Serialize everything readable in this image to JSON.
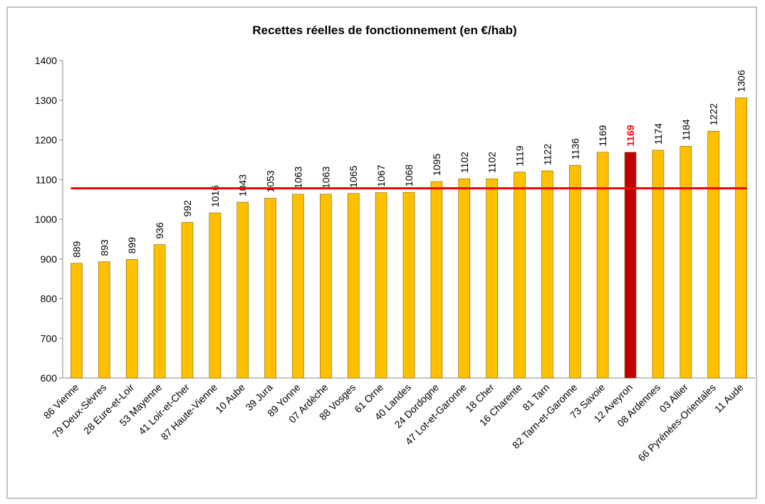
{
  "chart_data": {
    "type": "bar",
    "title": "Recettes réelles de fonctionnement (en €/hab)",
    "categories": [
      "86 Vienne",
      "79 Deux-Sèvres",
      "28 Eure-et-Loir",
      "53 Mayenne",
      "41 Loir-et-Cher",
      "87 Haute-Vienne",
      "10 Aube",
      "39 Jura",
      "89 Yonne",
      "07 Ardèche",
      "88 Vosges",
      "61 Orne",
      "40 Landes",
      "24 Dordogne",
      "47 Lot-et-Garonne",
      "18 Cher",
      "16 Charente",
      "81 Tarn",
      "82 Tarn-et-Garonne",
      "73 Savoie",
      "12 Aveyron",
      "08 Ardennes",
      "03 Allier",
      "66 Pyrénées-Orientales",
      "11 Aude"
    ],
    "values": [
      889,
      893,
      899,
      936,
      992,
      1016,
      1043,
      1053,
      1063,
      1063,
      1065,
      1067,
      1068,
      1095,
      1102,
      1102,
      1119,
      1122,
      1136,
      1169,
      1169,
      1174,
      1184,
      1222,
      1306
    ],
    "colors": [
      "#ffc000",
      "#ffc000",
      "#ffc000",
      "#ffc000",
      "#ffc000",
      "#ffc000",
      "#ffc000",
      "#ffc000",
      "#ffc000",
      "#ffc000",
      "#ffc000",
      "#ffc000",
      "#ffc000",
      "#ffc000",
      "#ffc000",
      "#ffc000",
      "#ffc000",
      "#ffc000",
      "#ffc000",
      "#ffc000",
      "#c00000",
      "#ffc000",
      "#ffc000",
      "#ffc000",
      "#ffc000"
    ],
    "reference_line": 1078,
    "reference_color": "#ff0000",
    "ylim": [
      600,
      1400
    ],
    "yticks": [
      600,
      700,
      800,
      900,
      1000,
      1100,
      1200,
      1300,
      1400
    ],
    "grid": false
  }
}
